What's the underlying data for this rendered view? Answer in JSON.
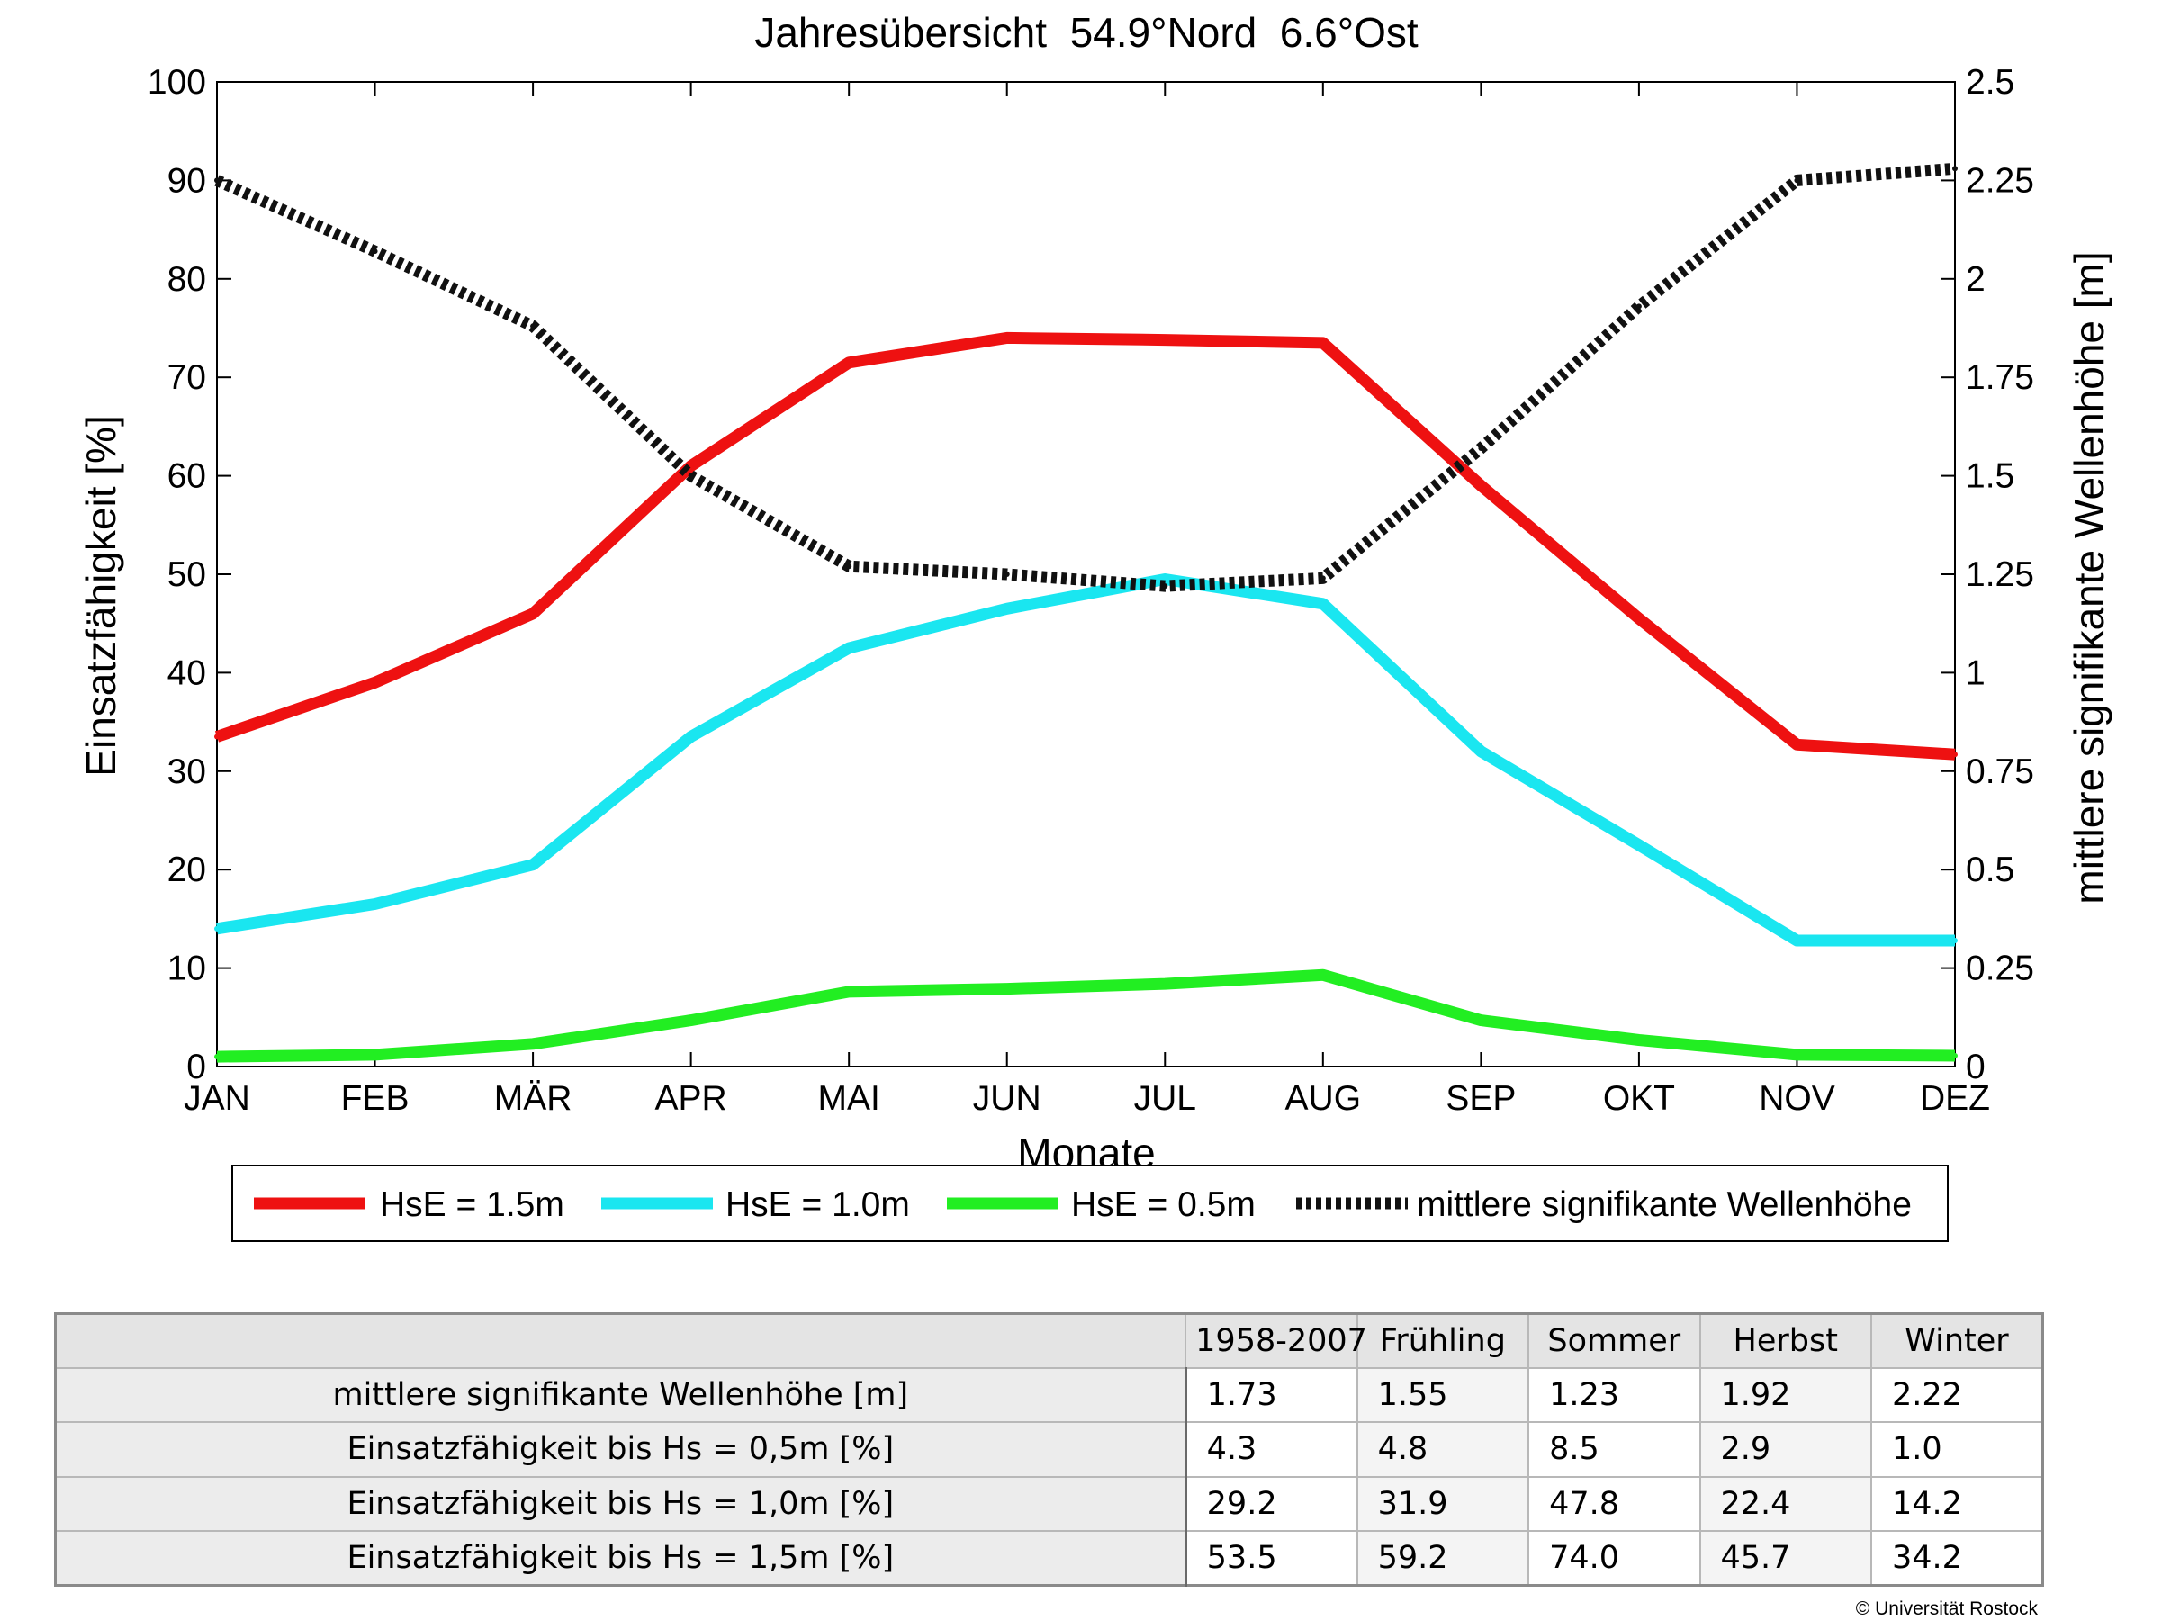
{
  "chart_data": {
    "type": "line",
    "title": "Jahresübersicht  54.9°Nord  6.6°Ost",
    "xlabel": "Monate",
    "ylabel": "Einsatzfähigkeit [%]",
    "y2label": "mittlere signifikante Wellenhöhe [m]",
    "categories": [
      "JAN",
      "FEB",
      "MÄR",
      "APR",
      "MAI",
      "JUN",
      "JUL",
      "AUG",
      "SEP",
      "OKT",
      "NOV",
      "DEZ"
    ],
    "ylim": [
      0,
      100
    ],
    "yticks": [
      "0",
      "10",
      "20",
      "30",
      "40",
      "50",
      "60",
      "70",
      "80",
      "90",
      "100"
    ],
    "y2lim": [
      0,
      2.5
    ],
    "y2ticks": [
      "0",
      "0.25",
      "0.5",
      "0.75",
      "1",
      "1.25",
      "1.5",
      "1.75",
      "2",
      "2.25",
      "2.5"
    ],
    "grid": false,
    "legend_position": "bottom",
    "series": [
      {
        "name": "HsE = 1.5m",
        "axis": "left",
        "color": "#ee1111",
        "style": "solid",
        "values": [
          33.5,
          39,
          46,
          61,
          71.5,
          74,
          73.8,
          73.5,
          59,
          45.5,
          32.7,
          31.7
        ]
      },
      {
        "name": "HsE = 1.0m",
        "axis": "left",
        "color": "#1ae6f0",
        "style": "solid",
        "values": [
          14,
          16.5,
          20.5,
          33.5,
          42.5,
          46.5,
          49.5,
          47,
          32,
          22.5,
          12.8,
          12.8
        ]
      },
      {
        "name": "HsE = 0.5m",
        "axis": "left",
        "color": "#22ee22",
        "style": "solid",
        "values": [
          1,
          1.2,
          2.3,
          4.7,
          7.6,
          7.9,
          8.4,
          9.3,
          4.7,
          2.7,
          1.2,
          1.1
        ]
      },
      {
        "name": "mittlere signifikante Wellenhöhe",
        "axis": "right",
        "color": "#111111",
        "style": "dotted",
        "values": [
          2.25,
          2.07,
          1.88,
          1.5,
          1.27,
          1.25,
          1.22,
          1.24,
          1.57,
          1.93,
          2.25,
          2.28
        ]
      }
    ]
  },
  "table": {
    "headers": [
      "1958-2007",
      "Frühling",
      "Sommer",
      "Herbst",
      "Winter"
    ],
    "rows": [
      {
        "label": "mittlere signifikante Wellenhöhe [m]",
        "values": [
          "1.73",
          "1.55",
          "1.23",
          "1.92",
          "2.22"
        ]
      },
      {
        "label": "Einsatzfähigkeit bis Hs = 0,5m [%]",
        "values": [
          "4.3",
          "4.8",
          "8.5",
          "2.9",
          "1.0"
        ]
      },
      {
        "label": "Einsatzfähigkeit bis Hs = 1,0m [%]",
        "values": [
          "29.2",
          "31.9",
          "47.8",
          "22.4",
          "14.2"
        ]
      },
      {
        "label": "Einsatzfähigkeit bis Hs = 1,5m [%]",
        "values": [
          "53.5",
          "59.2",
          "74.0",
          "45.7",
          "34.2"
        ]
      }
    ]
  },
  "copyright": "© Universität Rostock"
}
